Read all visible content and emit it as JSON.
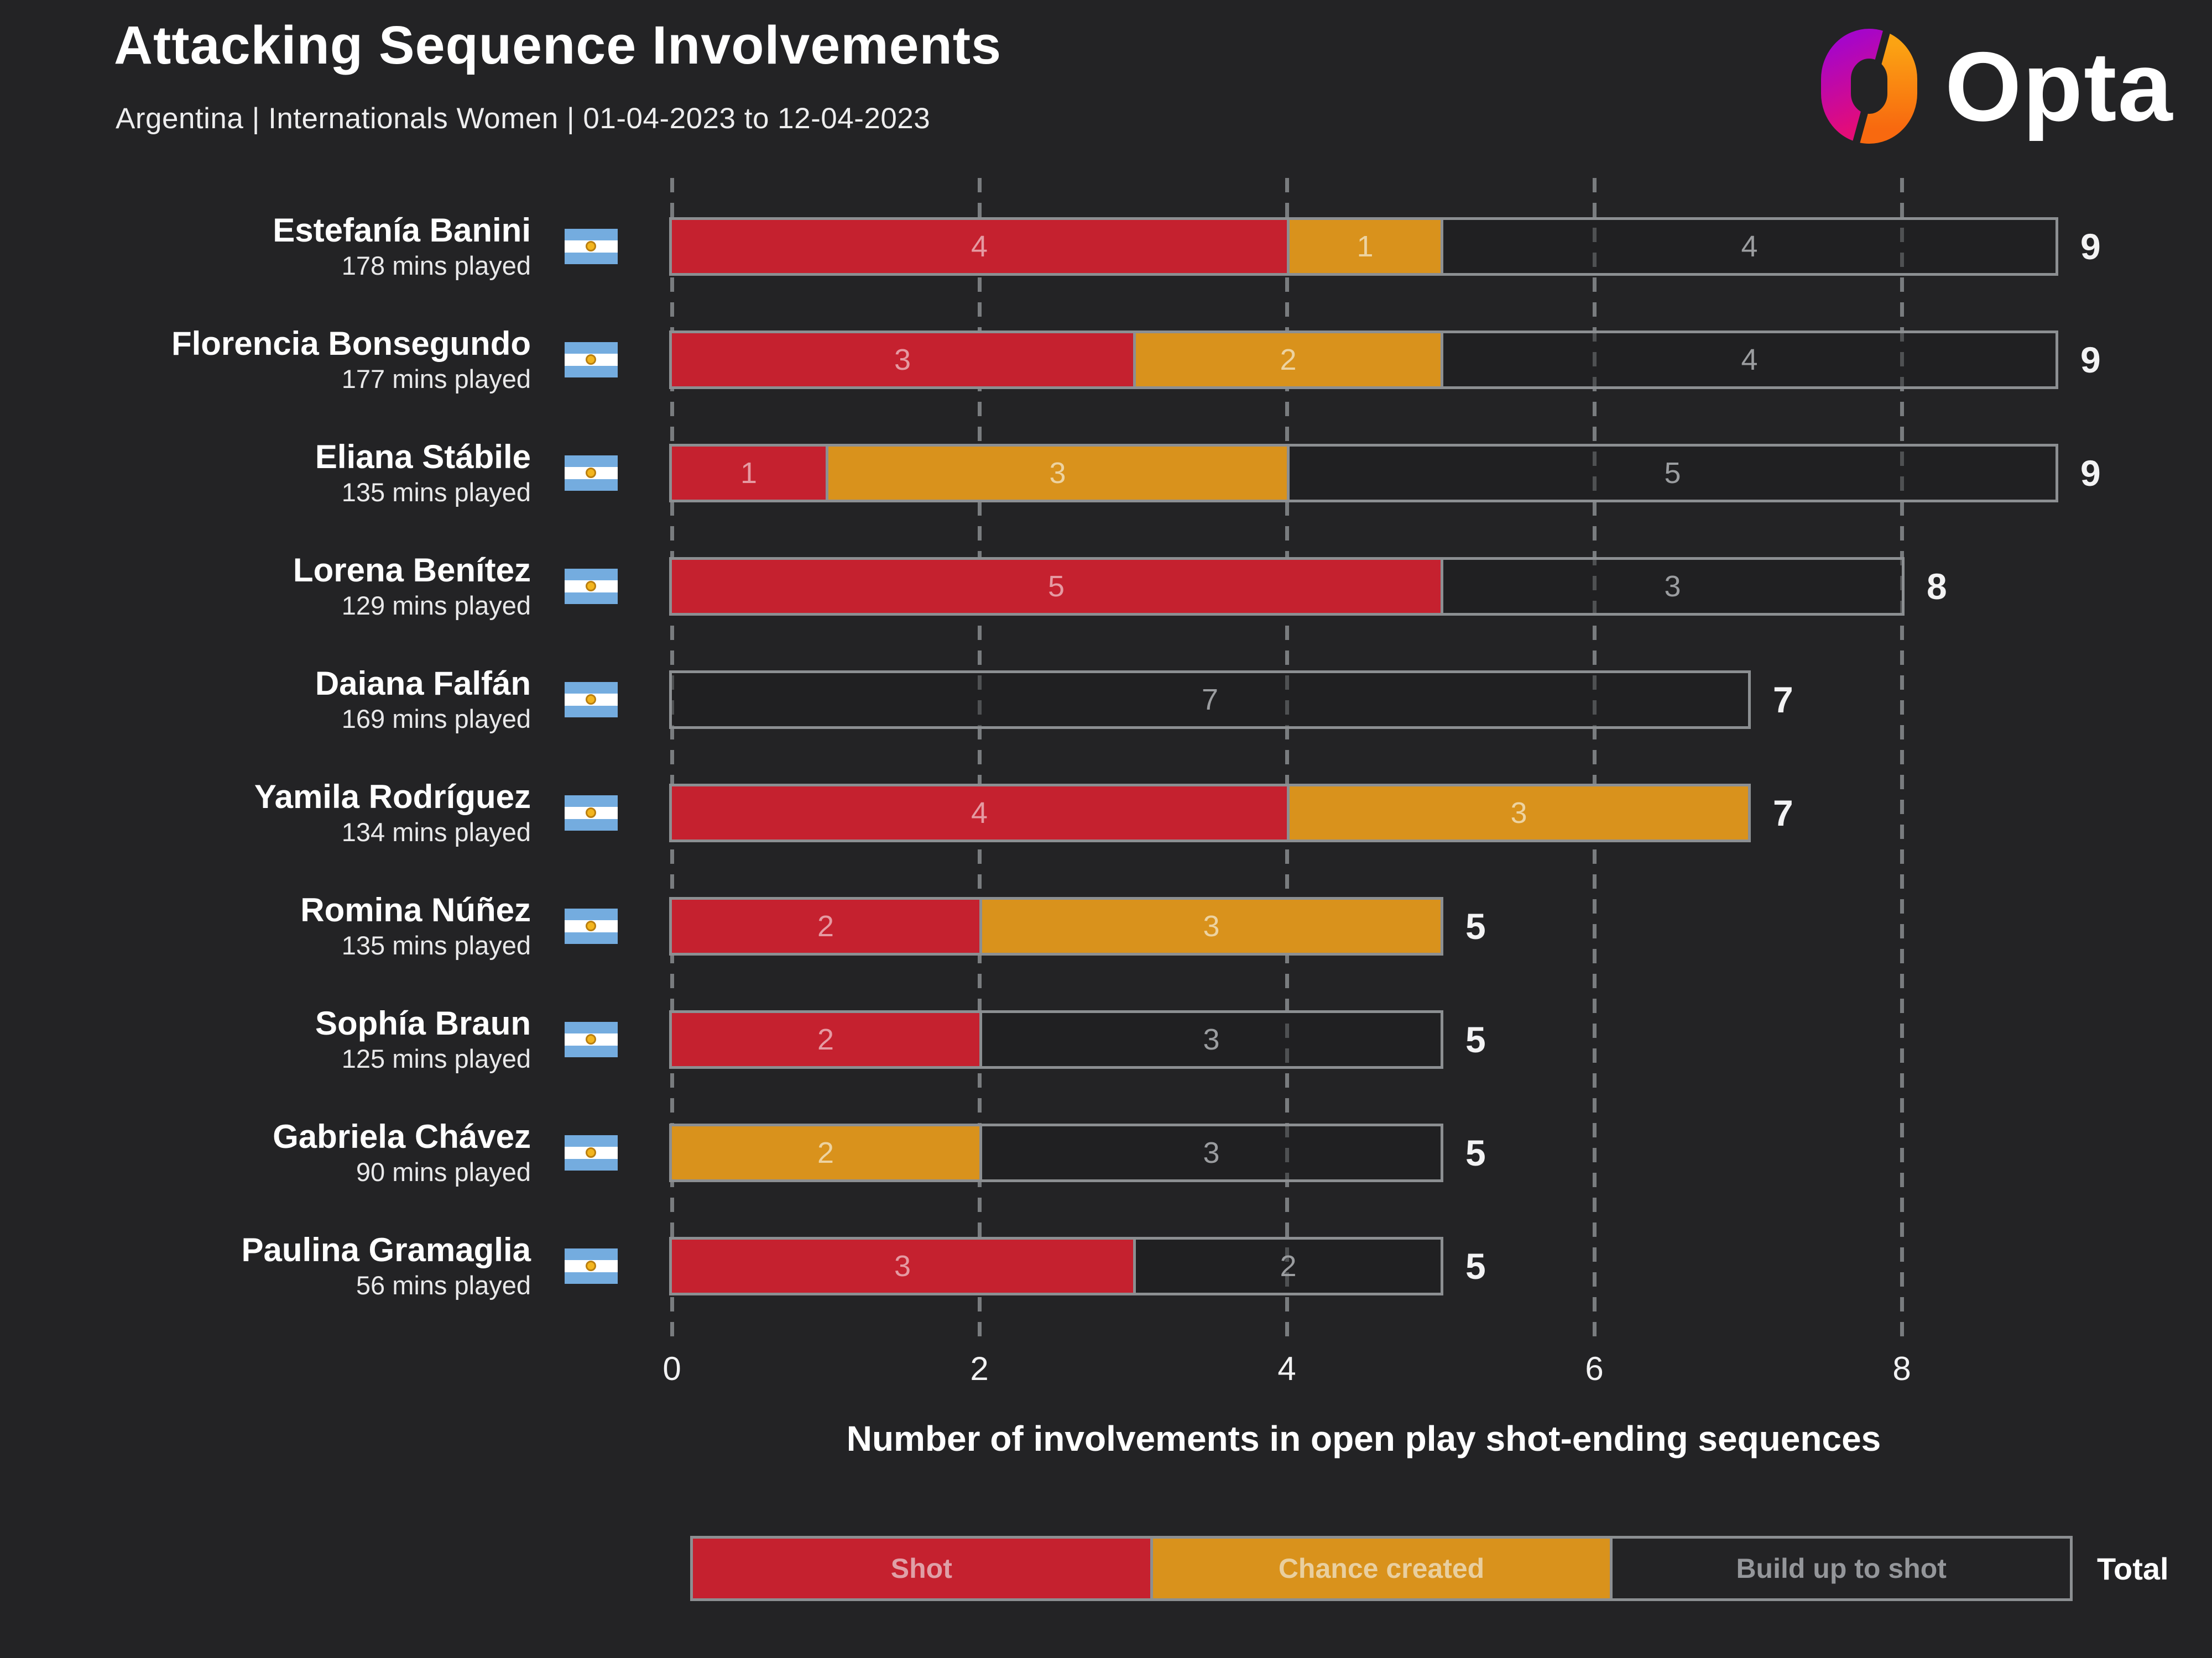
{
  "title": "Attacking Sequence Involvements",
  "subtitle": "Argentina | Internationals Women | 01-04-2023 to 12-04-2023",
  "brand": {
    "logo_text": "Opta"
  },
  "colors": {
    "background": "#232325",
    "shot": "#c5212f",
    "chance_created": "#d9921c",
    "build_up_fill": "rgba(28,29,31,0.45)",
    "bar_outline": "#8c8f92",
    "grid": "#797c7f",
    "shot_label": "#e59aa2",
    "chance_label": "#edd3a1",
    "build_up_label": "#9b9da0",
    "flag_blue": "#74acdf",
    "flag_white": "#ffffff",
    "flag_sun": "#f3b51e",
    "logo_purple": "#a606c9",
    "logo_magenta": "#e50c77",
    "logo_orange_top": "#fba313",
    "logo_orange_bottom": "#f8690f"
  },
  "chart_data": {
    "type": "bar",
    "orientation": "horizontal",
    "stacked": true,
    "xlabel": "Number of involvements in open play shot-ending sequences",
    "x_ticks": [
      0,
      2,
      4,
      6,
      8
    ],
    "xlim": [
      0,
      9.6
    ],
    "grid": "dashed-vertical",
    "legend_position": "bottom",
    "legend": [
      "Shot",
      "Chance created",
      "Build up to shot"
    ],
    "total_label": "Total",
    "series_keys": [
      "shot",
      "chance_created",
      "build_up"
    ],
    "players": [
      {
        "name": "Estefanía Banini",
        "mins_played": "178 mins played",
        "shot": 4,
        "chance_created": 1,
        "build_up": 4,
        "total": 9
      },
      {
        "name": "Florencia Bonsegundo",
        "mins_played": "177 mins played",
        "shot": 3,
        "chance_created": 2,
        "build_up": 4,
        "total": 9
      },
      {
        "name": "Eliana Stábile",
        "mins_played": "135 mins played",
        "shot": 1,
        "chance_created": 3,
        "build_up": 5,
        "total": 9
      },
      {
        "name": "Lorena Benítez",
        "mins_played": "129 mins played",
        "shot": 5,
        "chance_created": 0,
        "build_up": 3,
        "total": 8
      },
      {
        "name": "Daiana Falfán",
        "mins_played": "169 mins played",
        "shot": 0,
        "chance_created": 0,
        "build_up": 7,
        "total": 7
      },
      {
        "name": "Yamila Rodríguez",
        "mins_played": "134 mins played",
        "shot": 4,
        "chance_created": 3,
        "build_up": 0,
        "total": 7
      },
      {
        "name": "Romina Núñez",
        "mins_played": "135 mins played",
        "shot": 2,
        "chance_created": 3,
        "build_up": 0,
        "total": 5
      },
      {
        "name": "Sophía Braun",
        "mins_played": "125 mins played",
        "shot": 2,
        "chance_created": 0,
        "build_up": 3,
        "total": 5
      },
      {
        "name": "Gabriela Chávez",
        "mins_played": "90 mins played",
        "shot": 0,
        "chance_created": 2,
        "build_up": 3,
        "total": 5
      },
      {
        "name": "Paulina Gramaglia",
        "mins_played": "56 mins played",
        "shot": 3,
        "chance_created": 0,
        "build_up": 2,
        "total": 5
      }
    ]
  }
}
